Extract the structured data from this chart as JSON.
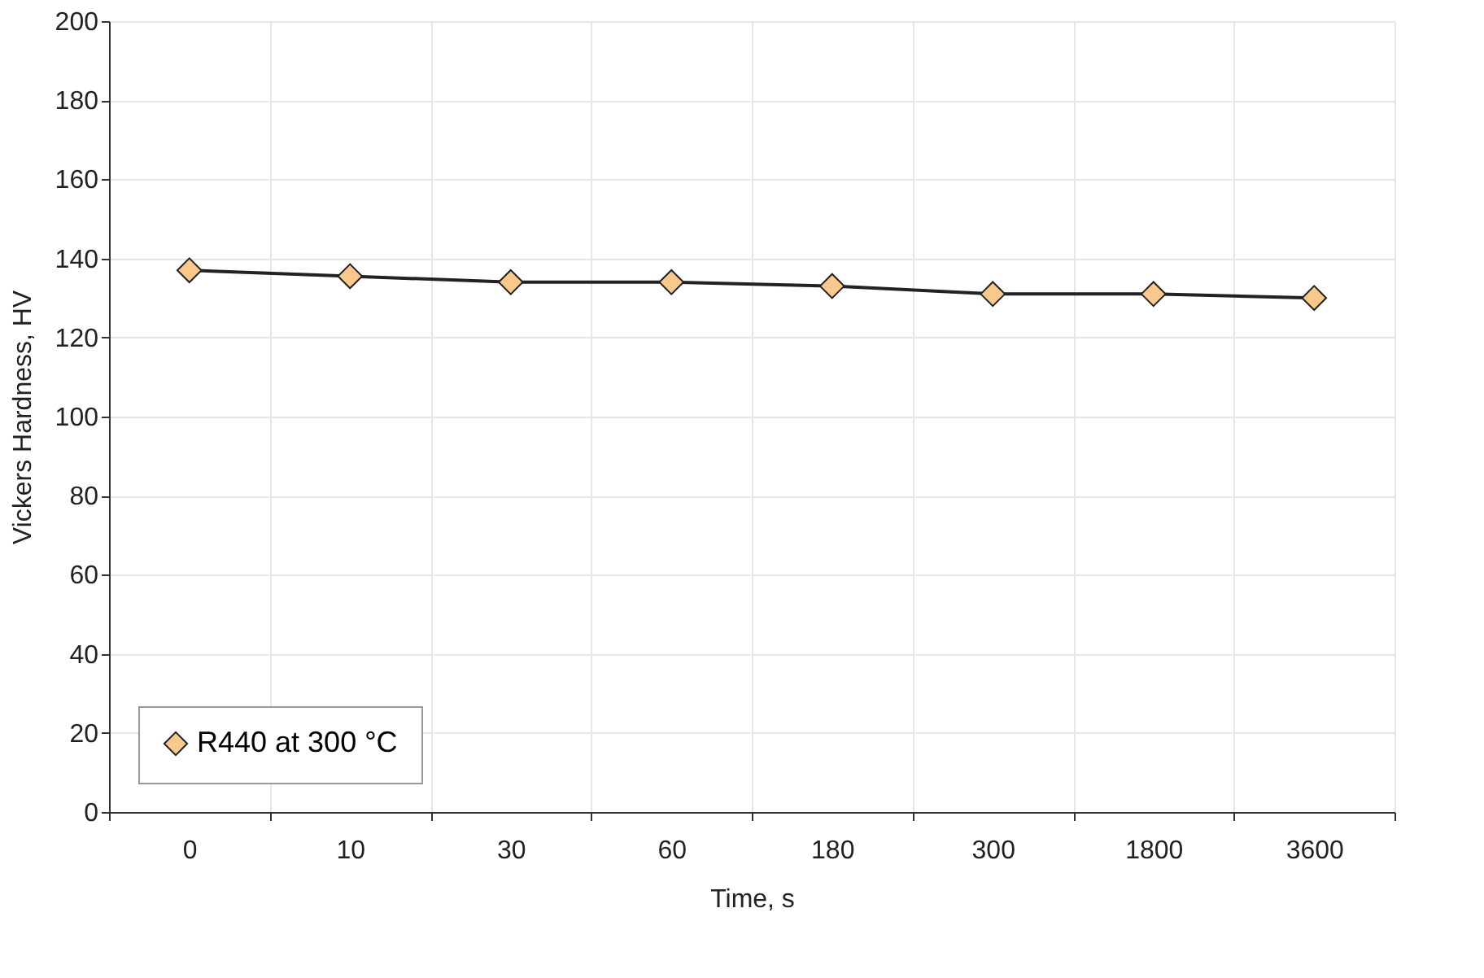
{
  "chart_data": {
    "type": "line",
    "xlabel": "Time, s",
    "ylabel": "Vickers Hardness, HV",
    "categories": [
      "0",
      "10",
      "30",
      "60",
      "180",
      "300",
      "1800",
      "3600"
    ],
    "series": [
      {
        "name": "R440 at 300 °C",
        "color": "#f9c98c",
        "values": [
          137,
          135.5,
          134,
          134,
          133,
          131,
          131,
          130
        ]
      }
    ],
    "ylim": [
      0,
      200
    ],
    "yticks": [
      0,
      20,
      40,
      60,
      80,
      100,
      120,
      140,
      160,
      180,
      200
    ],
    "grid": true,
    "legend": "bottom left",
    "marker": "diamond",
    "line_style": "solid"
  }
}
